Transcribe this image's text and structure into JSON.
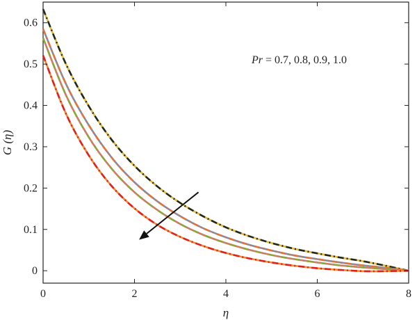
{
  "chart_data": {
    "type": "line",
    "xlabel": "η",
    "ylabel": "G (η)",
    "xlim": [
      0,
      8
    ],
    "ylim": [
      -0.03,
      0.65
    ],
    "x_ticks": [
      "0",
      "2",
      "4",
      "6",
      "8"
    ],
    "y_ticks": [
      "0",
      "0.1",
      "0.2",
      "0.3",
      "0.4",
      "0.5",
      "0.6"
    ],
    "grid": false,
    "annotation": {
      "var": "Pr",
      "rest": " = 0.7, 0.8, 0.9, 1.0"
    },
    "arrow": {
      "from": [
        3.4,
        0.19
      ],
      "to": [
        2.1,
        0.075
      ]
    },
    "series": [
      {
        "color": "#1f2a1f",
        "color2": "#e8b830",
        "x": [
          0,
          0.5,
          1,
          1.5,
          2,
          2.5,
          3,
          3.5,
          4,
          4.5,
          5,
          5.5,
          6,
          6.5,
          7,
          7.5,
          8
        ],
        "values": [
          0.633,
          0.5,
          0.398,
          0.317,
          0.254,
          0.204,
          0.164,
          0.132,
          0.105,
          0.084,
          0.067,
          0.053,
          0.042,
          0.032,
          0.023,
          0.012,
          0.0
        ]
      },
      {
        "color": "#e0733a",
        "color2": "#7a8eb0",
        "x": [
          0,
          0.5,
          1,
          1.5,
          2,
          2.5,
          3,
          3.5,
          4,
          4.5,
          5,
          5.5,
          6,
          6.5,
          7,
          7.5,
          8
        ],
        "values": [
          0.585,
          0.452,
          0.352,
          0.274,
          0.214,
          0.168,
          0.132,
          0.103,
          0.081,
          0.063,
          0.049,
          0.037,
          0.028,
          0.02,
          0.013,
          0.007,
          0.0
        ]
      },
      {
        "color": "#8aa838",
        "color2": "#e07070",
        "x": [
          0,
          0.5,
          1,
          1.5,
          2,
          2.5,
          3,
          3.5,
          4,
          4.5,
          5,
          5.5,
          6,
          6.5,
          7,
          7.5,
          8
        ],
        "values": [
          0.563,
          0.425,
          0.323,
          0.247,
          0.19,
          0.147,
          0.113,
          0.087,
          0.067,
          0.051,
          0.038,
          0.028,
          0.02,
          0.013,
          0.008,
          0.004,
          0.0
        ]
      },
      {
        "color": "#e02020",
        "color2": "#f08a30",
        "x": [
          0,
          0.5,
          1,
          1.5,
          2,
          2.5,
          3,
          3.5,
          4,
          4.5,
          5,
          5.5,
          6,
          6.5,
          7,
          7.5,
          8
        ],
        "values": [
          0.521,
          0.38,
          0.279,
          0.205,
          0.151,
          0.111,
          0.082,
          0.06,
          0.043,
          0.03,
          0.02,
          0.012,
          0.006,
          0.002,
          -0.001,
          -0.001,
          0.0
        ]
      }
    ]
  }
}
